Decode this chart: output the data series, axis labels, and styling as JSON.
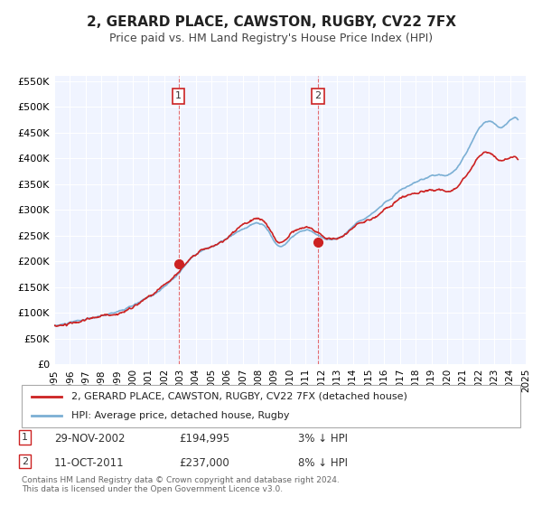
{
  "title": "2, GERARD PLACE, CAWSTON, RUGBY, CV22 7FX",
  "subtitle": "Price paid vs. HM Land Registry's House Price Index (HPI)",
  "ylabel": "",
  "background_color": "#ffffff",
  "plot_bg_color": "#f0f4ff",
  "grid_color": "#ffffff",
  "hpi_line_color": "#7bafd4",
  "price_line_color": "#cc2222",
  "sale1_date_num": 2002.91,
  "sale1_price": 194995,
  "sale1_label": "1",
  "sale2_date_num": 2011.78,
  "sale2_price": 237000,
  "sale2_label": "2",
  "legend_label_price": "2, GERARD PLACE, CAWSTON, RUGBY, CV22 7FX (detached house)",
  "legend_label_hpi": "HPI: Average price, detached house, Rugby",
  "table_row1": [
    "1",
    "29-NOV-2002",
    "£194,995",
    "3% ↓ HPI"
  ],
  "table_row2": [
    "2",
    "11-OCT-2011",
    "£237,000",
    "8% ↓ HPI"
  ],
  "footer": "Contains HM Land Registry data © Crown copyright and database right 2024.\nThis data is licensed under the Open Government Licence v3.0.",
  "xmin": 1995.0,
  "xmax": 2025.0,
  "ymin": 0,
  "ymax": 560000,
  "yticks": [
    0,
    50000,
    100000,
    150000,
    200000,
    250000,
    300000,
    350000,
    400000,
    450000,
    500000,
    550000
  ],
  "ytick_labels": [
    "£0",
    "£50K",
    "£100K",
    "£150K",
    "£200K",
    "£250K",
    "£300K",
    "£350K",
    "£400K",
    "£450K",
    "£500K",
    "£550K"
  ],
  "xticks": [
    1995,
    1996,
    1997,
    1998,
    1999,
    2000,
    2001,
    2002,
    2003,
    2004,
    2005,
    2006,
    2007,
    2008,
    2009,
    2010,
    2011,
    2012,
    2013,
    2014,
    2015,
    2016,
    2017,
    2018,
    2019,
    2020,
    2021,
    2022,
    2023,
    2024,
    2025
  ]
}
